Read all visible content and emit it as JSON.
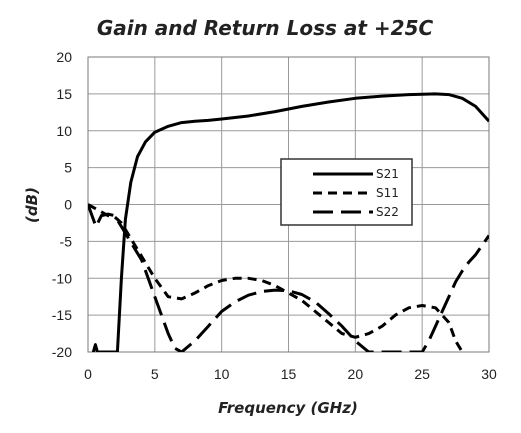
{
  "chart_data": {
    "type": "line",
    "title": "Gain and Return Loss at +25C",
    "xlabel": "Frequency (GHz)",
    "ylabel": "(dB)",
    "xlim": [
      0,
      30
    ],
    "ylim": [
      -20,
      20
    ],
    "xticks": [
      0,
      5,
      10,
      15,
      20,
      25,
      30
    ],
    "yticks": [
      20,
      15,
      10,
      5,
      0,
      -5,
      -10,
      -15,
      -20
    ],
    "grid": true,
    "legend_position": "center-right",
    "series": [
      {
        "name": "S21",
        "style": "solid",
        "color": "#000000",
        "x": [
          0.4,
          0.55,
          0.7,
          2.2,
          2.5,
          2.8,
          3.2,
          3.7,
          4.3,
          5.0,
          6.0,
          7.0,
          8.0,
          9.0,
          10.0,
          12.0,
          14.0,
          16.0,
          18.0,
          20.0,
          22.0,
          24.0,
          26.0,
          27.0,
          28.0,
          29.0,
          30.0
        ],
        "y": [
          -20,
          -19,
          -20,
          -20,
          -10,
          -2,
          3,
          6.5,
          8.5,
          9.8,
          10.6,
          11.1,
          11.3,
          11.4,
          11.6,
          12.0,
          12.6,
          13.3,
          13.9,
          14.4,
          14.7,
          14.9,
          15.0,
          14.9,
          14.4,
          13.3,
          11.3
        ]
      },
      {
        "name": "S11",
        "style": "dashed",
        "color": "#000000",
        "x": [
          0,
          0.5,
          1.0,
          1.5,
          2.0,
          2.5,
          3.0,
          4.0,
          5.0,
          6.0,
          7.0,
          8.0,
          9.0,
          10.0,
          11.0,
          12.0,
          13.0,
          14.0,
          15.0,
          16.0,
          17.0,
          18.0,
          19.0,
          20.0,
          21.0,
          22.0,
          23.0,
          24.0,
          25.0,
          26.0,
          27.0,
          27.5,
          28.0
        ],
        "y": [
          0,
          -0.5,
          -1.0,
          -1.5,
          -1.7,
          -2.5,
          -4,
          -7,
          -10,
          -12.5,
          -12.8,
          -12,
          -11,
          -10.3,
          -10,
          -10,
          -10.3,
          -11,
          -12,
          -13,
          -14.5,
          -16,
          -17.5,
          -18,
          -17.5,
          -16.5,
          -15,
          -14,
          -13.7,
          -14,
          -16,
          -18.5,
          -20
        ]
      },
      {
        "name": "S22",
        "style": "long-dash",
        "color": "#000000",
        "x": [
          0,
          0.3,
          0.6,
          1.0,
          1.5,
          2.0,
          2.5,
          3.0,
          3.5,
          4.0,
          4.5,
          5.0,
          5.5,
          6.0,
          6.5,
          7.0,
          8.0,
          9.0,
          10.0,
          11.0,
          12.0,
          13.0,
          14.0,
          15.0,
          16.0,
          17.0,
          18.0,
          19.0,
          20.0,
          21.0,
          21.5,
          25.0,
          25.5,
          26.0,
          26.5,
          27.0,
          27.5,
          28.0,
          28.5,
          29.0,
          29.5,
          30.0
        ],
        "y": [
          0,
          -1.5,
          -3,
          -1.5,
          -1.3,
          -1.5,
          -3,
          -4.5,
          -6,
          -7.5,
          -10,
          -12.5,
          -15,
          -17.5,
          -19.5,
          -20,
          -18.5,
          -16.5,
          -14.5,
          -13.2,
          -12.3,
          -11.8,
          -11.6,
          -11.7,
          -12.2,
          -13.2,
          -14.8,
          -16.5,
          -18.5,
          -20,
          -20,
          -20,
          -18.5,
          -16.5,
          -14.5,
          -12.5,
          -10.5,
          -9,
          -7.8,
          -6.8,
          -5.5,
          -4.2
        ]
      }
    ]
  }
}
